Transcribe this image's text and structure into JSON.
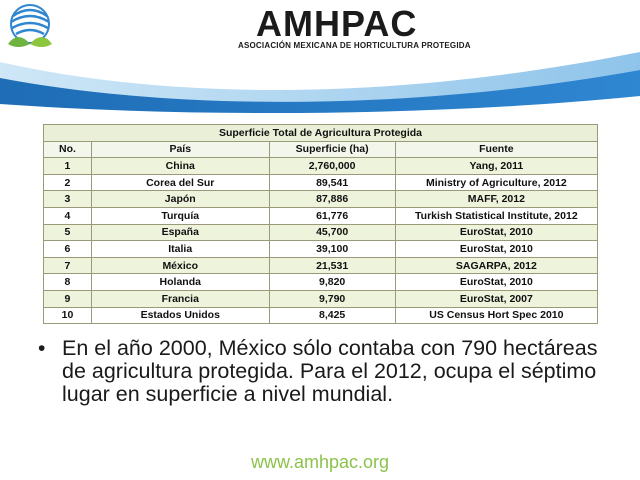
{
  "brand": {
    "name": "AMHPAC",
    "subtitle": "ASOCIACIÓN MEXICANA DE HORTICULTURA PROTEGIDA"
  },
  "colors": {
    "wave_dark": "#1e6db6",
    "wave_light": "#a9d3ee",
    "footer_green": "#8bc34a",
    "row_tint": "#eef3dc"
  },
  "table": {
    "title": "Superficie Total de Agricultura Protegida",
    "headers": {
      "no": "No.",
      "pais": "País",
      "superficie": "Superficie (ha)",
      "fuente": "Fuente"
    },
    "rows": [
      {
        "no": "1",
        "pais": "China",
        "superficie": "2,760,000",
        "fuente": "Yang, 2011"
      },
      {
        "no": "2",
        "pais": "Corea del Sur",
        "superficie": "89,541",
        "fuente": "Ministry of Agriculture, 2012"
      },
      {
        "no": "3",
        "pais": "Japón",
        "superficie": "87,886",
        "fuente": "MAFF, 2012"
      },
      {
        "no": "4",
        "pais": "Turquía",
        "superficie": "61,776",
        "fuente": "Turkish Statistical Institute, 2012"
      },
      {
        "no": "5",
        "pais": "España",
        "superficie": "45,700",
        "fuente": "EuroStat, 2010"
      },
      {
        "no": "6",
        "pais": "Italia",
        "superficie": "39,100",
        "fuente": "EuroStat, 2010"
      },
      {
        "no": "7",
        "pais": "México",
        "superficie": "21,531",
        "fuente": "SAGARPA, 2012"
      },
      {
        "no": "8",
        "pais": "Holanda",
        "superficie": "9,820",
        "fuente": "EuroStat, 2010"
      },
      {
        "no": "9",
        "pais": "Francia",
        "superficie": "9,790",
        "fuente": "EuroStat, 2007"
      },
      {
        "no": "10",
        "pais": "Estados Unidos",
        "superficie": "8,425",
        "fuente": "US Census Hort Spec 2010"
      }
    ]
  },
  "bullet": {
    "symbol": "•",
    "text": "En el año 2000, México sólo contaba con 790 hectáreas de agricultura protegida. Para el 2012, ocupa el séptimo lugar en superficie a nivel mundial."
  },
  "footer": {
    "url": "www.amhpac.org"
  }
}
